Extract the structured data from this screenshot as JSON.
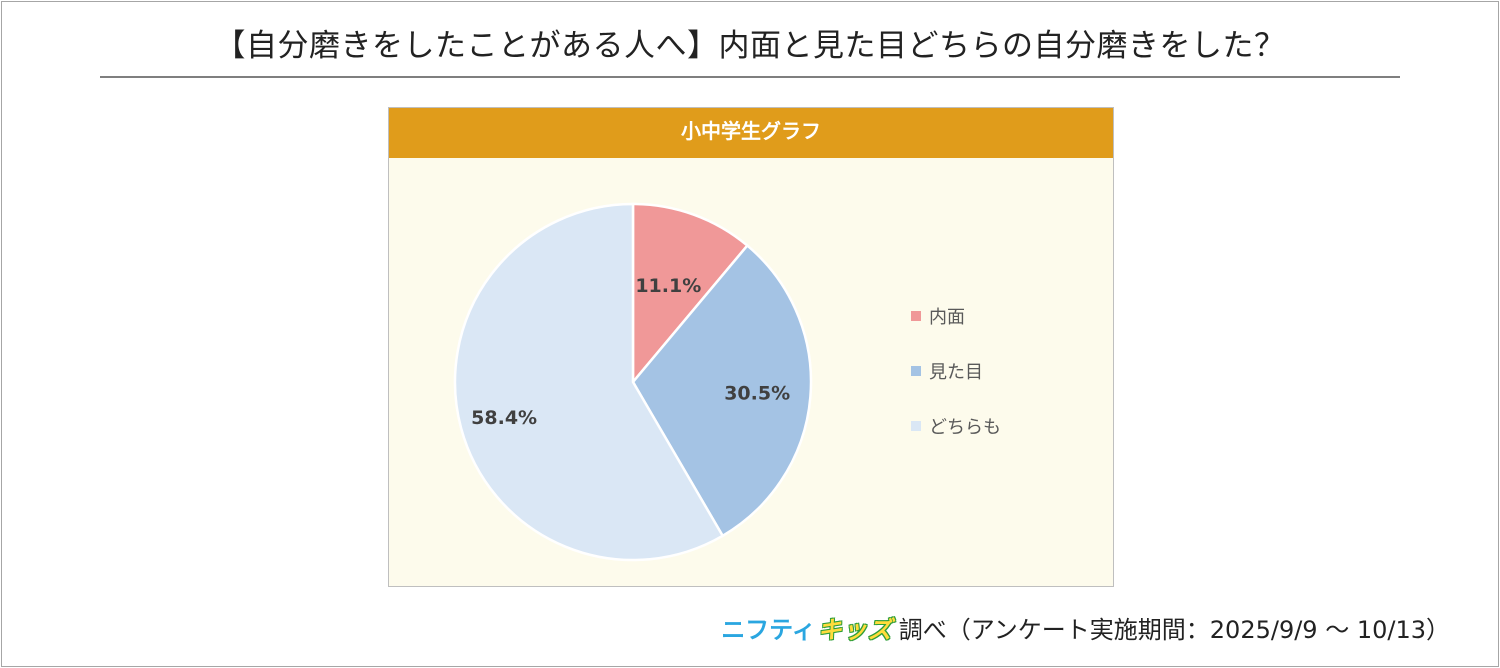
{
  "page_title": "【自分磨きをしたことがある人へ】内面と見た目どちらの自分磨きをした？",
  "chart_header": "小中学生グラフ",
  "footer": {
    "brand_part1": "ニフティ",
    "brand_part2": "キッズ",
    "text": "調べ（アンケート実施期間：2025/9/9 ～ 10/13）"
  },
  "chart_data": {
    "type": "pie",
    "title": "小中学生グラフ",
    "labels": [
      "内面",
      "見た目",
      "どちらも"
    ],
    "values": [
      11.1,
      30.5,
      58.4
    ],
    "value_labels": [
      "11.1%",
      "30.5%",
      "58.4%"
    ],
    "colors": [
      "#f09898",
      "#a4c3e4",
      "#dae7f5"
    ],
    "start_angle": "12 o'clock",
    "direction": "clockwise",
    "legend_position": "right"
  }
}
